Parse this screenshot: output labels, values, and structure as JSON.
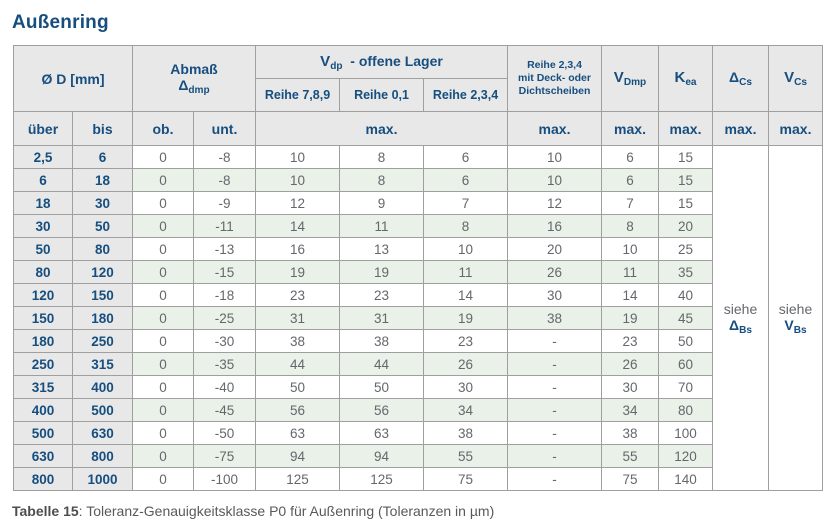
{
  "title": "Außenring",
  "colors": {
    "accent_blue": "#164e7f",
    "header_gray": "#e8e8e8",
    "stripe_green": "#e9f1e8",
    "value_gray": "#64676c",
    "border_gray": "#9f9f9f"
  },
  "header": {
    "d_label": "Ø D  [mm]",
    "abmass_line1": "Abmaß",
    "abmass_sym": "Δ",
    "abmass_sub": "dmp",
    "vdp_sym": "V",
    "vdp_sub": "dp",
    "vdp_rest": "-  offene Lager",
    "vdp_cols": [
      "Reihe 7,8,9",
      "Reihe 0,1",
      "Reihe 2,3,4"
    ],
    "deck_lines": [
      "Reihe 2,3,4",
      "mit Deck- oder",
      "Dichtscheiben"
    ],
    "vdmp_sym": "V",
    "vdmp_sub": "Dmp",
    "kea_sym": "K",
    "kea_sub": "ea",
    "dcs_sym": "Δ",
    "dcs_sub": "Cs",
    "vcs_sym": "V",
    "vcs_sub": "Cs",
    "ueber": "über",
    "bis": "bis",
    "ob": "ob.",
    "unt": "unt.",
    "max_label": "max."
  },
  "see_refs": {
    "dbs": {
      "prefix": "siehe",
      "sym": "Δ",
      "sub": "Bs"
    },
    "vbs": {
      "prefix": "siehe",
      "sym": "V",
      "sub": "Bs"
    }
  },
  "rows": [
    {
      "ueber": "2,5",
      "bis": "6",
      "ob": "0",
      "unt": "-8",
      "r789": "10",
      "r01": "8",
      "r234": "6",
      "deck": "10",
      "vdmp": "6",
      "kea": "15"
    },
    {
      "ueber": "6",
      "bis": "18",
      "ob": "0",
      "unt": "-8",
      "r789": "10",
      "r01": "8",
      "r234": "6",
      "deck": "10",
      "vdmp": "6",
      "kea": "15"
    },
    {
      "ueber": "18",
      "bis": "30",
      "ob": "0",
      "unt": "-9",
      "r789": "12",
      "r01": "9",
      "r234": "7",
      "deck": "12",
      "vdmp": "7",
      "kea": "15"
    },
    {
      "ueber": "30",
      "bis": "50",
      "ob": "0",
      "unt": "-11",
      "r789": "14",
      "r01": "11",
      "r234": "8",
      "deck": "16",
      "vdmp": "8",
      "kea": "20"
    },
    {
      "ueber": "50",
      "bis": "80",
      "ob": "0",
      "unt": "-13",
      "r789": "16",
      "r01": "13",
      "r234": "10",
      "deck": "20",
      "vdmp": "10",
      "kea": "25"
    },
    {
      "ueber": "80",
      "bis": "120",
      "ob": "0",
      "unt": "-15",
      "r789": "19",
      "r01": "19",
      "r234": "11",
      "deck": "26",
      "vdmp": "11",
      "kea": "35"
    },
    {
      "ueber": "120",
      "bis": "150",
      "ob": "0",
      "unt": "-18",
      "r789": "23",
      "r01": "23",
      "r234": "14",
      "deck": "30",
      "vdmp": "14",
      "kea": "40"
    },
    {
      "ueber": "150",
      "bis": "180",
      "ob": "0",
      "unt": "-25",
      "r789": "31",
      "r01": "31",
      "r234": "19",
      "deck": "38",
      "vdmp": "19",
      "kea": "45"
    },
    {
      "ueber": "180",
      "bis": "250",
      "ob": "0",
      "unt": "-30",
      "r789": "38",
      "r01": "38",
      "r234": "23",
      "deck": "-",
      "vdmp": "23",
      "kea": "50"
    },
    {
      "ueber": "250",
      "bis": "315",
      "ob": "0",
      "unt": "-35",
      "r789": "44",
      "r01": "44",
      "r234": "26",
      "deck": "-",
      "vdmp": "26",
      "kea": "60"
    },
    {
      "ueber": "315",
      "bis": "400",
      "ob": "0",
      "unt": "-40",
      "r789": "50",
      "r01": "50",
      "r234": "30",
      "deck": "-",
      "vdmp": "30",
      "kea": "70"
    },
    {
      "ueber": "400",
      "bis": "500",
      "ob": "0",
      "unt": "-45",
      "r789": "56",
      "r01": "56",
      "r234": "34",
      "deck": "-",
      "vdmp": "34",
      "kea": "80"
    },
    {
      "ueber": "500",
      "bis": "630",
      "ob": "0",
      "unt": "-50",
      "r789": "63",
      "r01": "63",
      "r234": "38",
      "deck": "-",
      "vdmp": "38",
      "kea": "100"
    },
    {
      "ueber": "630",
      "bis": "800",
      "ob": "0",
      "unt": "-75",
      "r789": "94",
      "r01": "94",
      "r234": "55",
      "deck": "-",
      "vdmp": "55",
      "kea": "120"
    },
    {
      "ueber": "800",
      "bis": "1000",
      "ob": "0",
      "unt": "-100",
      "r789": "125",
      "r01": "125",
      "r234": "75",
      "deck": "-",
      "vdmp": "75",
      "kea": "140"
    }
  ],
  "caption": {
    "label": "Tabelle 15",
    "text": ": Toleranz-Genauigkeitsklasse P0 für Außenring (Toleranzen in µm)"
  }
}
